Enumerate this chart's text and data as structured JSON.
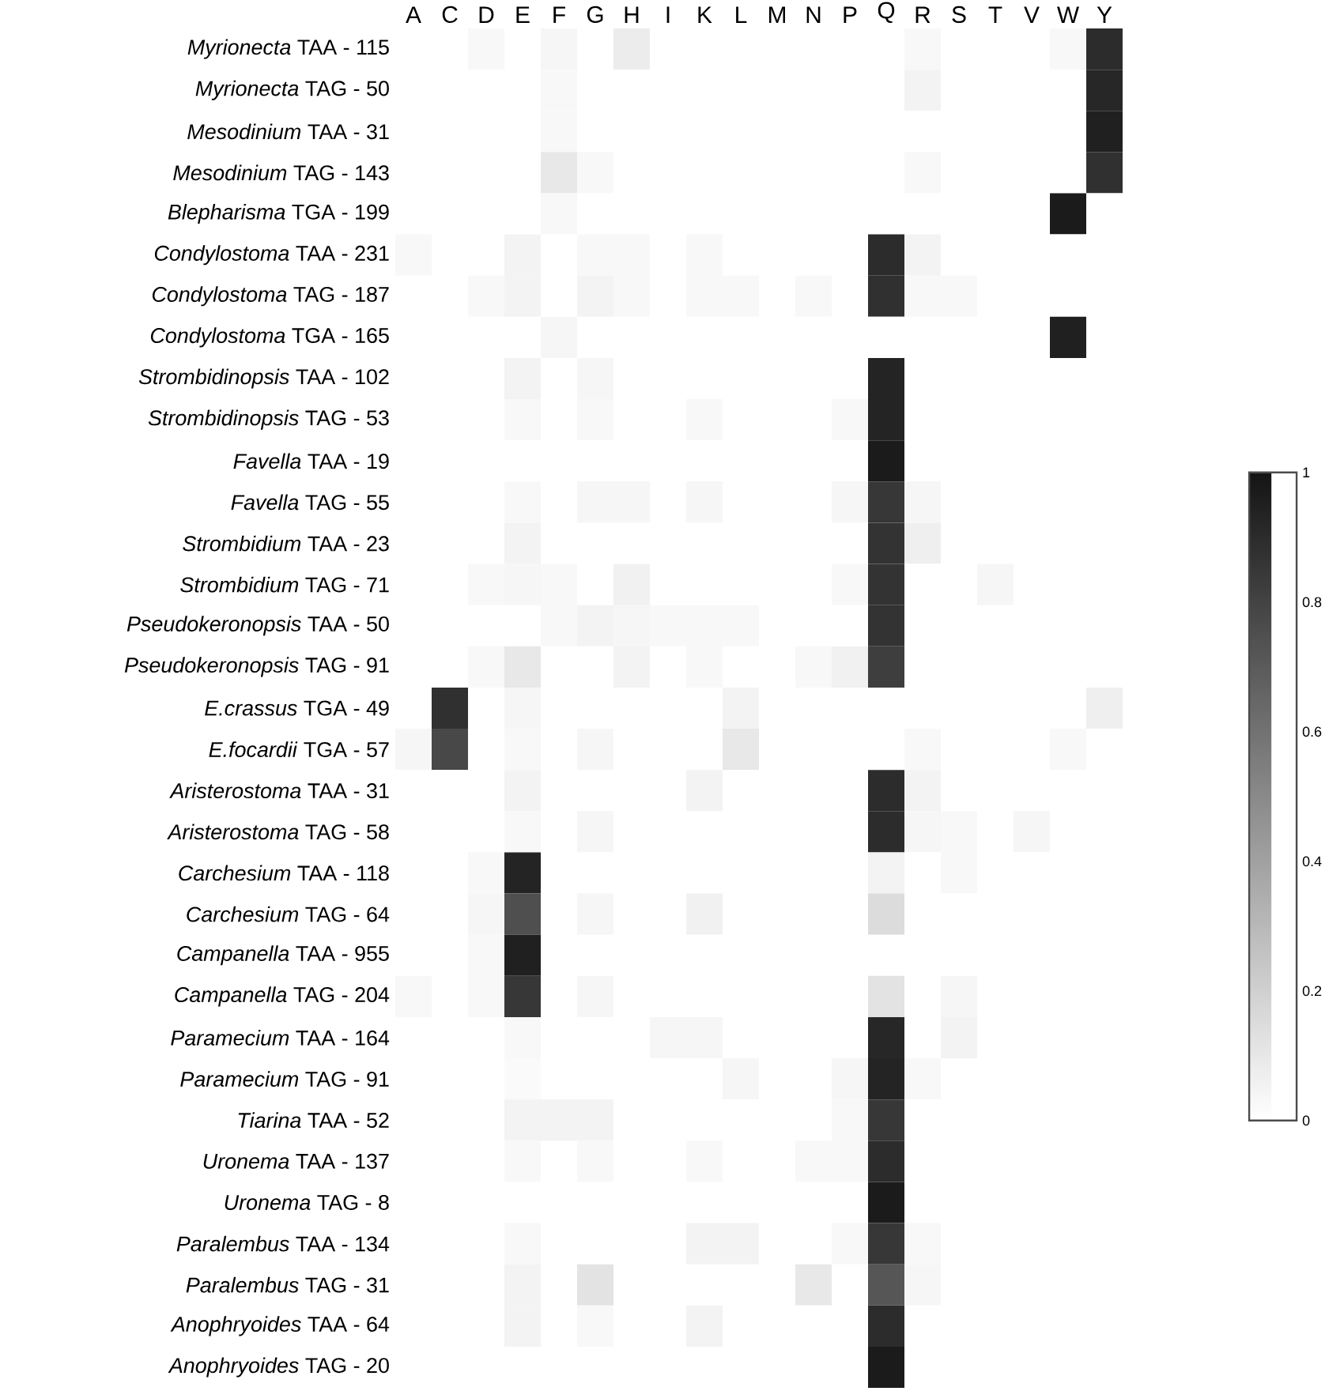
{
  "chart_data": {
    "type": "heatmap",
    "categories": [
      "A",
      "C",
      "D",
      "E",
      "F",
      "G",
      "H",
      "I",
      "K",
      "L",
      "M",
      "N",
      "P",
      "Q",
      "R",
      "S",
      "T",
      "V",
      "W",
      "Y"
    ],
    "y_categories": [
      "*Myrionecta* TAA - 115",
      "*Myrionecta* TAG - 50",
      "*Mesodinium* TAA - 31",
      "*Mesodinium* TAG - 143",
      "*Blepharisma* TGA - 199",
      "*Condylostoma* TAA - 231",
      "*Condylostoma* TAG - 187",
      "*Condylostoma* TGA - 165",
      "*Strombidinopsis* TAA - 102",
      "*Strombidinopsis* TAG - 53",
      "*Favella* TAA - 19",
      "*Favella* TAG - 55",
      "*Strombidium* TAA - 23",
      "*Strombidium* TAG - 71",
      "*Pseudokeronopsis* TAA - 50",
      "*Pseudokeronopsis* TAG - 91",
      "*E.crassus* TGA - 49",
      "*E.focardii* TGA - 57",
      "*Aristerostoma* TAA - 31",
      "*Aristerostoma* TAG - 58",
      "*Carchesium* TAA - 118",
      "*Carchesium* TAG - 64",
      "*Campanella* TAA - 955",
      "*Campanella* TAG - 204",
      "*Paramecium* TAA - 164",
      "*Paramecium* TAG - 91",
      "*Tiarina* TAA - 52",
      "*Uronema* TAA - 137",
      "*Uronema* TAG - 8",
      "*Paralembus* TAA - 134",
      "*Paralembus* TAG - 31",
      "*Anophryoides* TAA - 64",
      "*Anophryoides* TAG - 20"
    ],
    "cells": [
      [
        0,
        0,
        0.03,
        0,
        0.04,
        0,
        0.08,
        0,
        0,
        0,
        0,
        0,
        0,
        0,
        0.03,
        0,
        0,
        0,
        0.03,
        0.9
      ],
      [
        0,
        0,
        0,
        0,
        0.03,
        0,
        0,
        0,
        0,
        0,
        0,
        0,
        0,
        0,
        0.05,
        0,
        0,
        0,
        0,
        0.92
      ],
      [
        0,
        0,
        0,
        0,
        0.03,
        0,
        0,
        0,
        0,
        0,
        0,
        0,
        0,
        0,
        0,
        0,
        0,
        0,
        0,
        0.95
      ],
      [
        0,
        0,
        0,
        0,
        0.1,
        0.03,
        0,
        0,
        0,
        0,
        0,
        0,
        0,
        0,
        0.03,
        0,
        0,
        0,
        0,
        0.88
      ],
      [
        0,
        0,
        0,
        0,
        0.03,
        0,
        0,
        0,
        0,
        0,
        0,
        0,
        0,
        0,
        0,
        0,
        0,
        0,
        0.97,
        0
      ],
      [
        0.03,
        0,
        0,
        0.05,
        0,
        0.03,
        0.03,
        0,
        0.03,
        0,
        0,
        0,
        0,
        0.9,
        0.05,
        0,
        0,
        0,
        0,
        0
      ],
      [
        0,
        0,
        0.03,
        0.05,
        0,
        0.05,
        0.03,
        0,
        0.03,
        0.03,
        0,
        0.03,
        0,
        0.88,
        0.03,
        0.03,
        0,
        0,
        0,
        0
      ],
      [
        0,
        0,
        0,
        0,
        0.04,
        0,
        0,
        0,
        0,
        0,
        0,
        0,
        0,
        0,
        0,
        0,
        0,
        0,
        0.95,
        0
      ],
      [
        0,
        0,
        0,
        0.05,
        0,
        0.04,
        0,
        0,
        0,
        0,
        0,
        0,
        0,
        0.93,
        0,
        0,
        0,
        0,
        0,
        0
      ],
      [
        0,
        0,
        0,
        0.03,
        0,
        0.03,
        0,
        0,
        0.03,
        0,
        0,
        0,
        0.03,
        0.93,
        0,
        0,
        0,
        0,
        0,
        0
      ],
      [
        0,
        0,
        0,
        0,
        0,
        0,
        0,
        0,
        0,
        0,
        0,
        0,
        0,
        0.97,
        0,
        0,
        0,
        0,
        0,
        0
      ],
      [
        0,
        0,
        0,
        0.03,
        0,
        0.04,
        0.04,
        0,
        0.04,
        0,
        0,
        0,
        0.04,
        0.85,
        0.04,
        0,
        0,
        0,
        0,
        0
      ],
      [
        0,
        0,
        0,
        0.05,
        0,
        0,
        0,
        0,
        0,
        0,
        0,
        0,
        0,
        0.87,
        0.07,
        0,
        0,
        0,
        0,
        0
      ],
      [
        0,
        0,
        0.03,
        0.04,
        0.03,
        0,
        0.06,
        0,
        0,
        0,
        0,
        0,
        0.03,
        0.87,
        0,
        0,
        0.04,
        0,
        0,
        0
      ],
      [
        0,
        0,
        0,
        0,
        0.03,
        0.05,
        0.04,
        0.03,
        0.03,
        0.03,
        0,
        0,
        0,
        0.87,
        0,
        0,
        0,
        0,
        0,
        0
      ],
      [
        0,
        0,
        0.03,
        0.1,
        0,
        0,
        0.05,
        0,
        0.03,
        0,
        0,
        0.03,
        0.06,
        0.82,
        0,
        0,
        0,
        0,
        0,
        0
      ],
      [
        0,
        0.88,
        0,
        0.04,
        0,
        0,
        0,
        0,
        0,
        0.05,
        0,
        0,
        0,
        0,
        0,
        0,
        0,
        0,
        0,
        0.07
      ],
      [
        0.04,
        0.78,
        0,
        0.03,
        0,
        0.04,
        0,
        0,
        0,
        0.1,
        0,
        0,
        0,
        0,
        0.03,
        0,
        0,
        0,
        0.03,
        0
      ],
      [
        0,
        0,
        0,
        0.05,
        0,
        0,
        0,
        0,
        0.05,
        0,
        0,
        0,
        0,
        0.9,
        0.05,
        0,
        0,
        0,
        0,
        0
      ],
      [
        0,
        0,
        0,
        0.03,
        0,
        0.04,
        0,
        0,
        0,
        0,
        0,
        0,
        0,
        0.9,
        0.04,
        0.03,
        0,
        0.04,
        0,
        0
      ],
      [
        0,
        0,
        0.03,
        0.93,
        0,
        0,
        0,
        0,
        0,
        0,
        0,
        0,
        0,
        0.05,
        0,
        0.03,
        0,
        0,
        0,
        0
      ],
      [
        0,
        0,
        0.04,
        0.75,
        0,
        0.04,
        0,
        0,
        0.06,
        0,
        0,
        0,
        0,
        0.15,
        0,
        0,
        0,
        0,
        0,
        0
      ],
      [
        0,
        0,
        0.03,
        0.95,
        0,
        0,
        0,
        0,
        0,
        0,
        0,
        0,
        0,
        0,
        0,
        0,
        0,
        0,
        0,
        0
      ],
      [
        0.03,
        0,
        0.03,
        0.85,
        0,
        0.04,
        0,
        0,
        0,
        0,
        0,
        0,
        0,
        0.12,
        0,
        0.04,
        0,
        0,
        0,
        0
      ],
      [
        0,
        0,
        0,
        0.03,
        0,
        0,
        0,
        0.04,
        0.04,
        0,
        0,
        0,
        0,
        0.92,
        0,
        0.05,
        0,
        0,
        0,
        0
      ],
      [
        0,
        0,
        0,
        0.02,
        0,
        0,
        0,
        0,
        0,
        0.04,
        0,
        0,
        0.04,
        0.93,
        0.03,
        0,
        0,
        0,
        0,
        0
      ],
      [
        0,
        0,
        0,
        0.05,
        0.05,
        0.05,
        0,
        0,
        0,
        0,
        0,
        0,
        0.03,
        0.85,
        0,
        0,
        0,
        0,
        0,
        0
      ],
      [
        0,
        0,
        0,
        0.03,
        0,
        0.03,
        0,
        0,
        0.03,
        0,
        0,
        0.03,
        0.03,
        0.9,
        0,
        0,
        0,
        0,
        0,
        0
      ],
      [
        0,
        0,
        0,
        0,
        0,
        0,
        0,
        0,
        0,
        0,
        0,
        0,
        0,
        0.97,
        0,
        0,
        0,
        0,
        0,
        0
      ],
      [
        0,
        0,
        0,
        0.03,
        0,
        0,
        0,
        0,
        0.05,
        0.05,
        0,
        0,
        0.03,
        0.85,
        0.03,
        0,
        0,
        0,
        0,
        0
      ],
      [
        0,
        0,
        0,
        0.05,
        0,
        0.12,
        0,
        0,
        0,
        0,
        0,
        0.1,
        0,
        0.72,
        0.04,
        0,
        0,
        0,
        0,
        0
      ],
      [
        0,
        0,
        0,
        0.05,
        0,
        0.03,
        0,
        0,
        0.05,
        0,
        0,
        0,
        0,
        0.9,
        0,
        0,
        0,
        0,
        0,
        0
      ],
      [
        0,
        0,
        0,
        0,
        0,
        0,
        0,
        0,
        0,
        0,
        0,
        0,
        0,
        0.97,
        0,
        0,
        0,
        0,
        0,
        0
      ]
    ],
    "clim": [
      0,
      1
    ],
    "cticks": [
      0,
      0.2,
      0.4,
      0.6,
      0.8,
      1
    ]
  }
}
